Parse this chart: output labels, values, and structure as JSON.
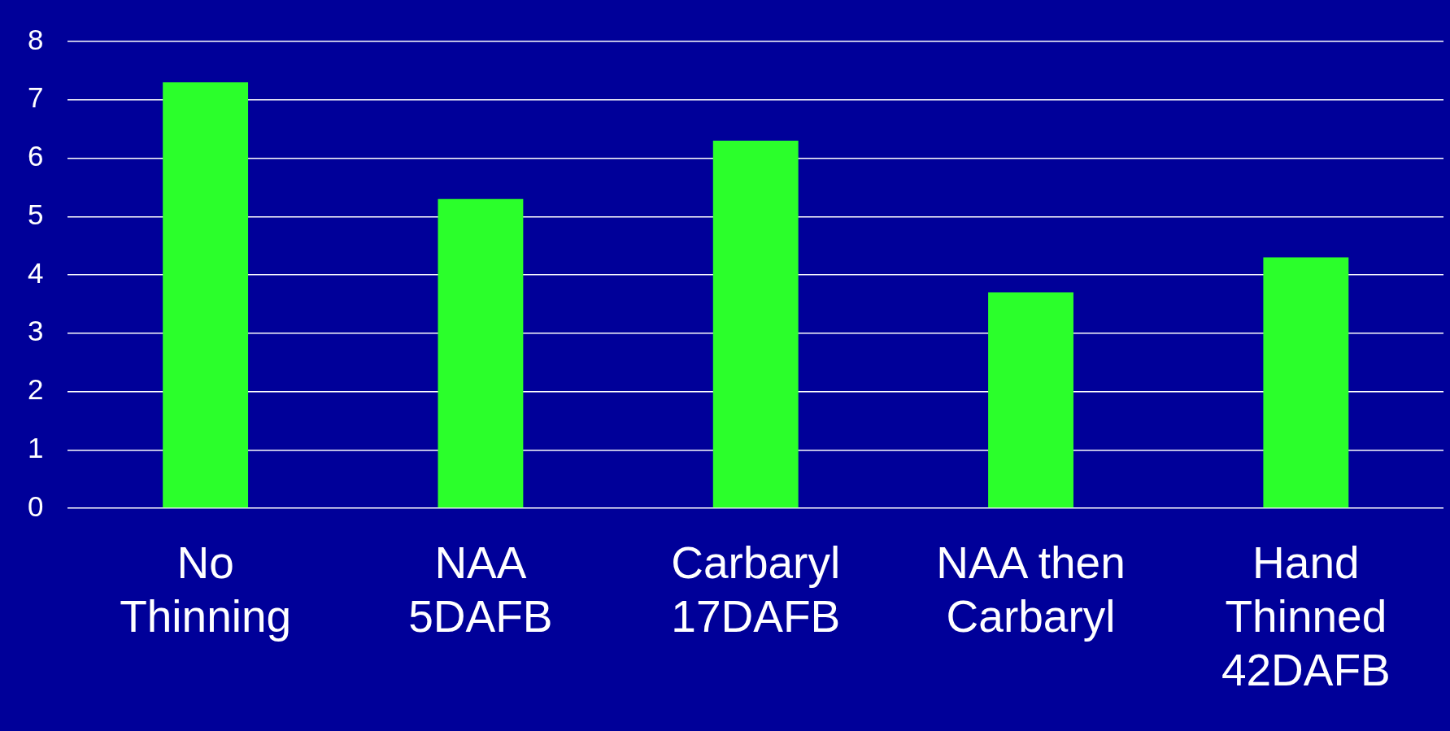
{
  "chart_data": {
    "type": "bar",
    "categories": [
      "No Thinning",
      "NAA 5DAFB",
      "Carbaryl 17DAFB",
      "NAA then Carbaryl",
      "Hand Thinned 42DAFB"
    ],
    "values": [
      7.3,
      5.3,
      6.3,
      3.7,
      4.3
    ],
    "color": "#2bff2b",
    "ylim": [
      0,
      8
    ],
    "yticks": [
      0,
      1,
      2,
      3,
      4,
      5,
      6,
      7,
      8
    ],
    "grid": "y",
    "legend": false
  }
}
